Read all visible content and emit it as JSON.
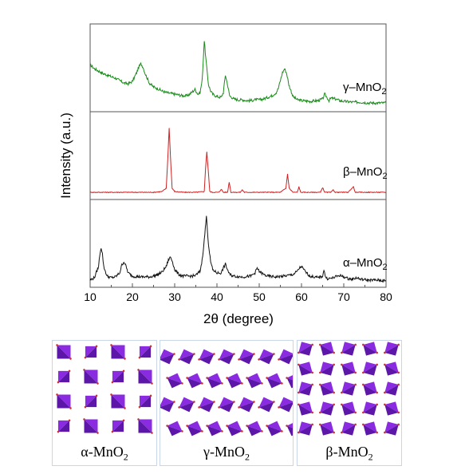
{
  "chart_data": {
    "type": "line",
    "xlabel": "2θ (degree)",
    "ylabel": "Intensity (a.u.)",
    "xlim": [
      10,
      80
    ],
    "xticks": [
      10,
      20,
      30,
      40,
      50,
      60,
      70,
      80
    ],
    "grid": false,
    "legend": "none",
    "series": [
      {
        "name": "γ–MnO2",
        "color": "#1a8a1a",
        "panel": 1,
        "x": [
          10,
          11,
          12,
          13,
          14,
          15,
          16,
          17,
          18,
          19,
          20,
          21,
          21.5,
          22,
          22.5,
          23,
          24,
          25,
          26,
          27,
          28,
          29,
          30,
          31,
          32,
          33,
          34,
          34.8,
          35.5,
          36,
          36.5,
          37,
          37.5,
          38,
          38.5,
          39,
          40,
          41,
          41.5,
          42,
          42.5,
          43,
          44,
          45,
          46,
          47,
          48,
          49,
          50,
          51,
          52,
          53,
          54,
          54.5,
          55,
          55.5,
          56,
          56.5,
          57,
          58,
          59,
          60,
          62,
          64,
          65,
          65.5,
          66,
          66.5,
          67,
          68,
          69,
          70,
          72,
          74,
          76,
          78,
          80
        ],
        "y": [
          0.55,
          0.5,
          0.47,
          0.44,
          0.42,
          0.4,
          0.38,
          0.35,
          0.32,
          0.31,
          0.34,
          0.45,
          0.52,
          0.56,
          0.52,
          0.44,
          0.32,
          0.27,
          0.25,
          0.22,
          0.2,
          0.19,
          0.18,
          0.17,
          0.16,
          0.16,
          0.2,
          0.24,
          0.18,
          0.2,
          0.35,
          0.85,
          0.55,
          0.3,
          0.22,
          0.18,
          0.15,
          0.14,
          0.2,
          0.42,
          0.3,
          0.16,
          0.12,
          0.11,
          0.11,
          0.1,
          0.1,
          0.11,
          0.11,
          0.12,
          0.14,
          0.16,
          0.2,
          0.25,
          0.35,
          0.45,
          0.5,
          0.44,
          0.3,
          0.15,
          0.11,
          0.1,
          0.09,
          0.1,
          0.12,
          0.18,
          0.14,
          0.1,
          0.13,
          0.12,
          0.1,
          0.09,
          0.08,
          0.08,
          0.07,
          0.07,
          0.07
        ]
      },
      {
        "name": "β–MnO2",
        "color": "#cc2222",
        "panel": 2,
        "x": [
          10,
          15,
          20,
          25,
          27,
          28,
          28.4,
          28.7,
          29,
          29.4,
          30,
          32,
          35,
          37,
          37.3,
          37.6,
          37.9,
          38.3,
          39,
          40.5,
          41,
          41.5,
          42.5,
          42.9,
          43.3,
          44,
          45.5,
          46,
          46.5,
          48,
          52,
          55,
          56.3,
          56.7,
          57.1,
          58,
          59,
          59.4,
          59.8,
          61,
          64.5,
          65,
          65.5,
          67,
          67.5,
          68,
          71,
          72.3,
          72.7,
          73,
          75,
          80
        ],
        "y": [
          0.05,
          0.05,
          0.05,
          0.05,
          0.06,
          0.1,
          0.5,
          0.86,
          0.5,
          0.1,
          0.06,
          0.05,
          0.05,
          0.06,
          0.35,
          0.56,
          0.35,
          0.06,
          0.05,
          0.05,
          0.09,
          0.05,
          0.05,
          0.18,
          0.05,
          0.05,
          0.05,
          0.08,
          0.05,
          0.05,
          0.05,
          0.05,
          0.1,
          0.28,
          0.1,
          0.05,
          0.05,
          0.12,
          0.05,
          0.05,
          0.05,
          0.11,
          0.05,
          0.05,
          0.08,
          0.05,
          0.05,
          0.12,
          0.05,
          0.05,
          0.05,
          0.05
        ]
      },
      {
        "name": "α–MnO2",
        "color": "#111111",
        "panel": 3,
        "x": [
          10,
          11,
          12,
          12.3,
          12.6,
          12.9,
          13.2,
          14,
          15,
          16,
          17,
          17.5,
          18,
          18.5,
          19,
          20,
          22,
          24,
          25,
          26,
          27,
          28,
          28.5,
          29,
          29.5,
          30,
          31,
          32,
          34,
          35,
          36,
          36.5,
          37,
          37.5,
          38,
          38.5,
          39,
          40,
          41,
          41.5,
          42,
          42.5,
          43,
          44,
          46,
          48,
          49,
          49.5,
          50,
          51,
          52,
          54,
          56,
          57,
          58,
          59,
          59.5,
          60,
          61,
          62,
          64,
          65,
          65.3,
          65.6,
          66,
          67,
          68,
          69,
          70,
          71,
          72,
          73,
          74,
          76,
          78,
          80
        ],
        "y": [
          0.05,
          0.08,
          0.22,
          0.38,
          0.46,
          0.38,
          0.22,
          0.1,
          0.08,
          0.09,
          0.14,
          0.24,
          0.28,
          0.22,
          0.14,
          0.1,
          0.09,
          0.09,
          0.1,
          0.12,
          0.15,
          0.22,
          0.3,
          0.34,
          0.28,
          0.18,
          0.12,
          0.1,
          0.1,
          0.11,
          0.16,
          0.3,
          0.55,
          0.85,
          0.5,
          0.28,
          0.18,
          0.14,
          0.14,
          0.2,
          0.25,
          0.18,
          0.12,
          0.1,
          0.09,
          0.1,
          0.14,
          0.2,
          0.16,
          0.12,
          0.1,
          0.09,
          0.1,
          0.11,
          0.12,
          0.16,
          0.2,
          0.22,
          0.15,
          0.1,
          0.08,
          0.1,
          0.18,
          0.1,
          0.07,
          0.07,
          0.09,
          0.11,
          0.09,
          0.07,
          0.06,
          0.08,
          0.06,
          0.05,
          0.05,
          0.04
        ]
      }
    ],
    "panel_labels": [
      {
        "text": "α-MnO",
        "sub": "2"
      },
      {
        "text": "γ-MnO",
        "sub": "2"
      },
      {
        "text": "β-MnO",
        "sub": "2"
      }
    ]
  }
}
